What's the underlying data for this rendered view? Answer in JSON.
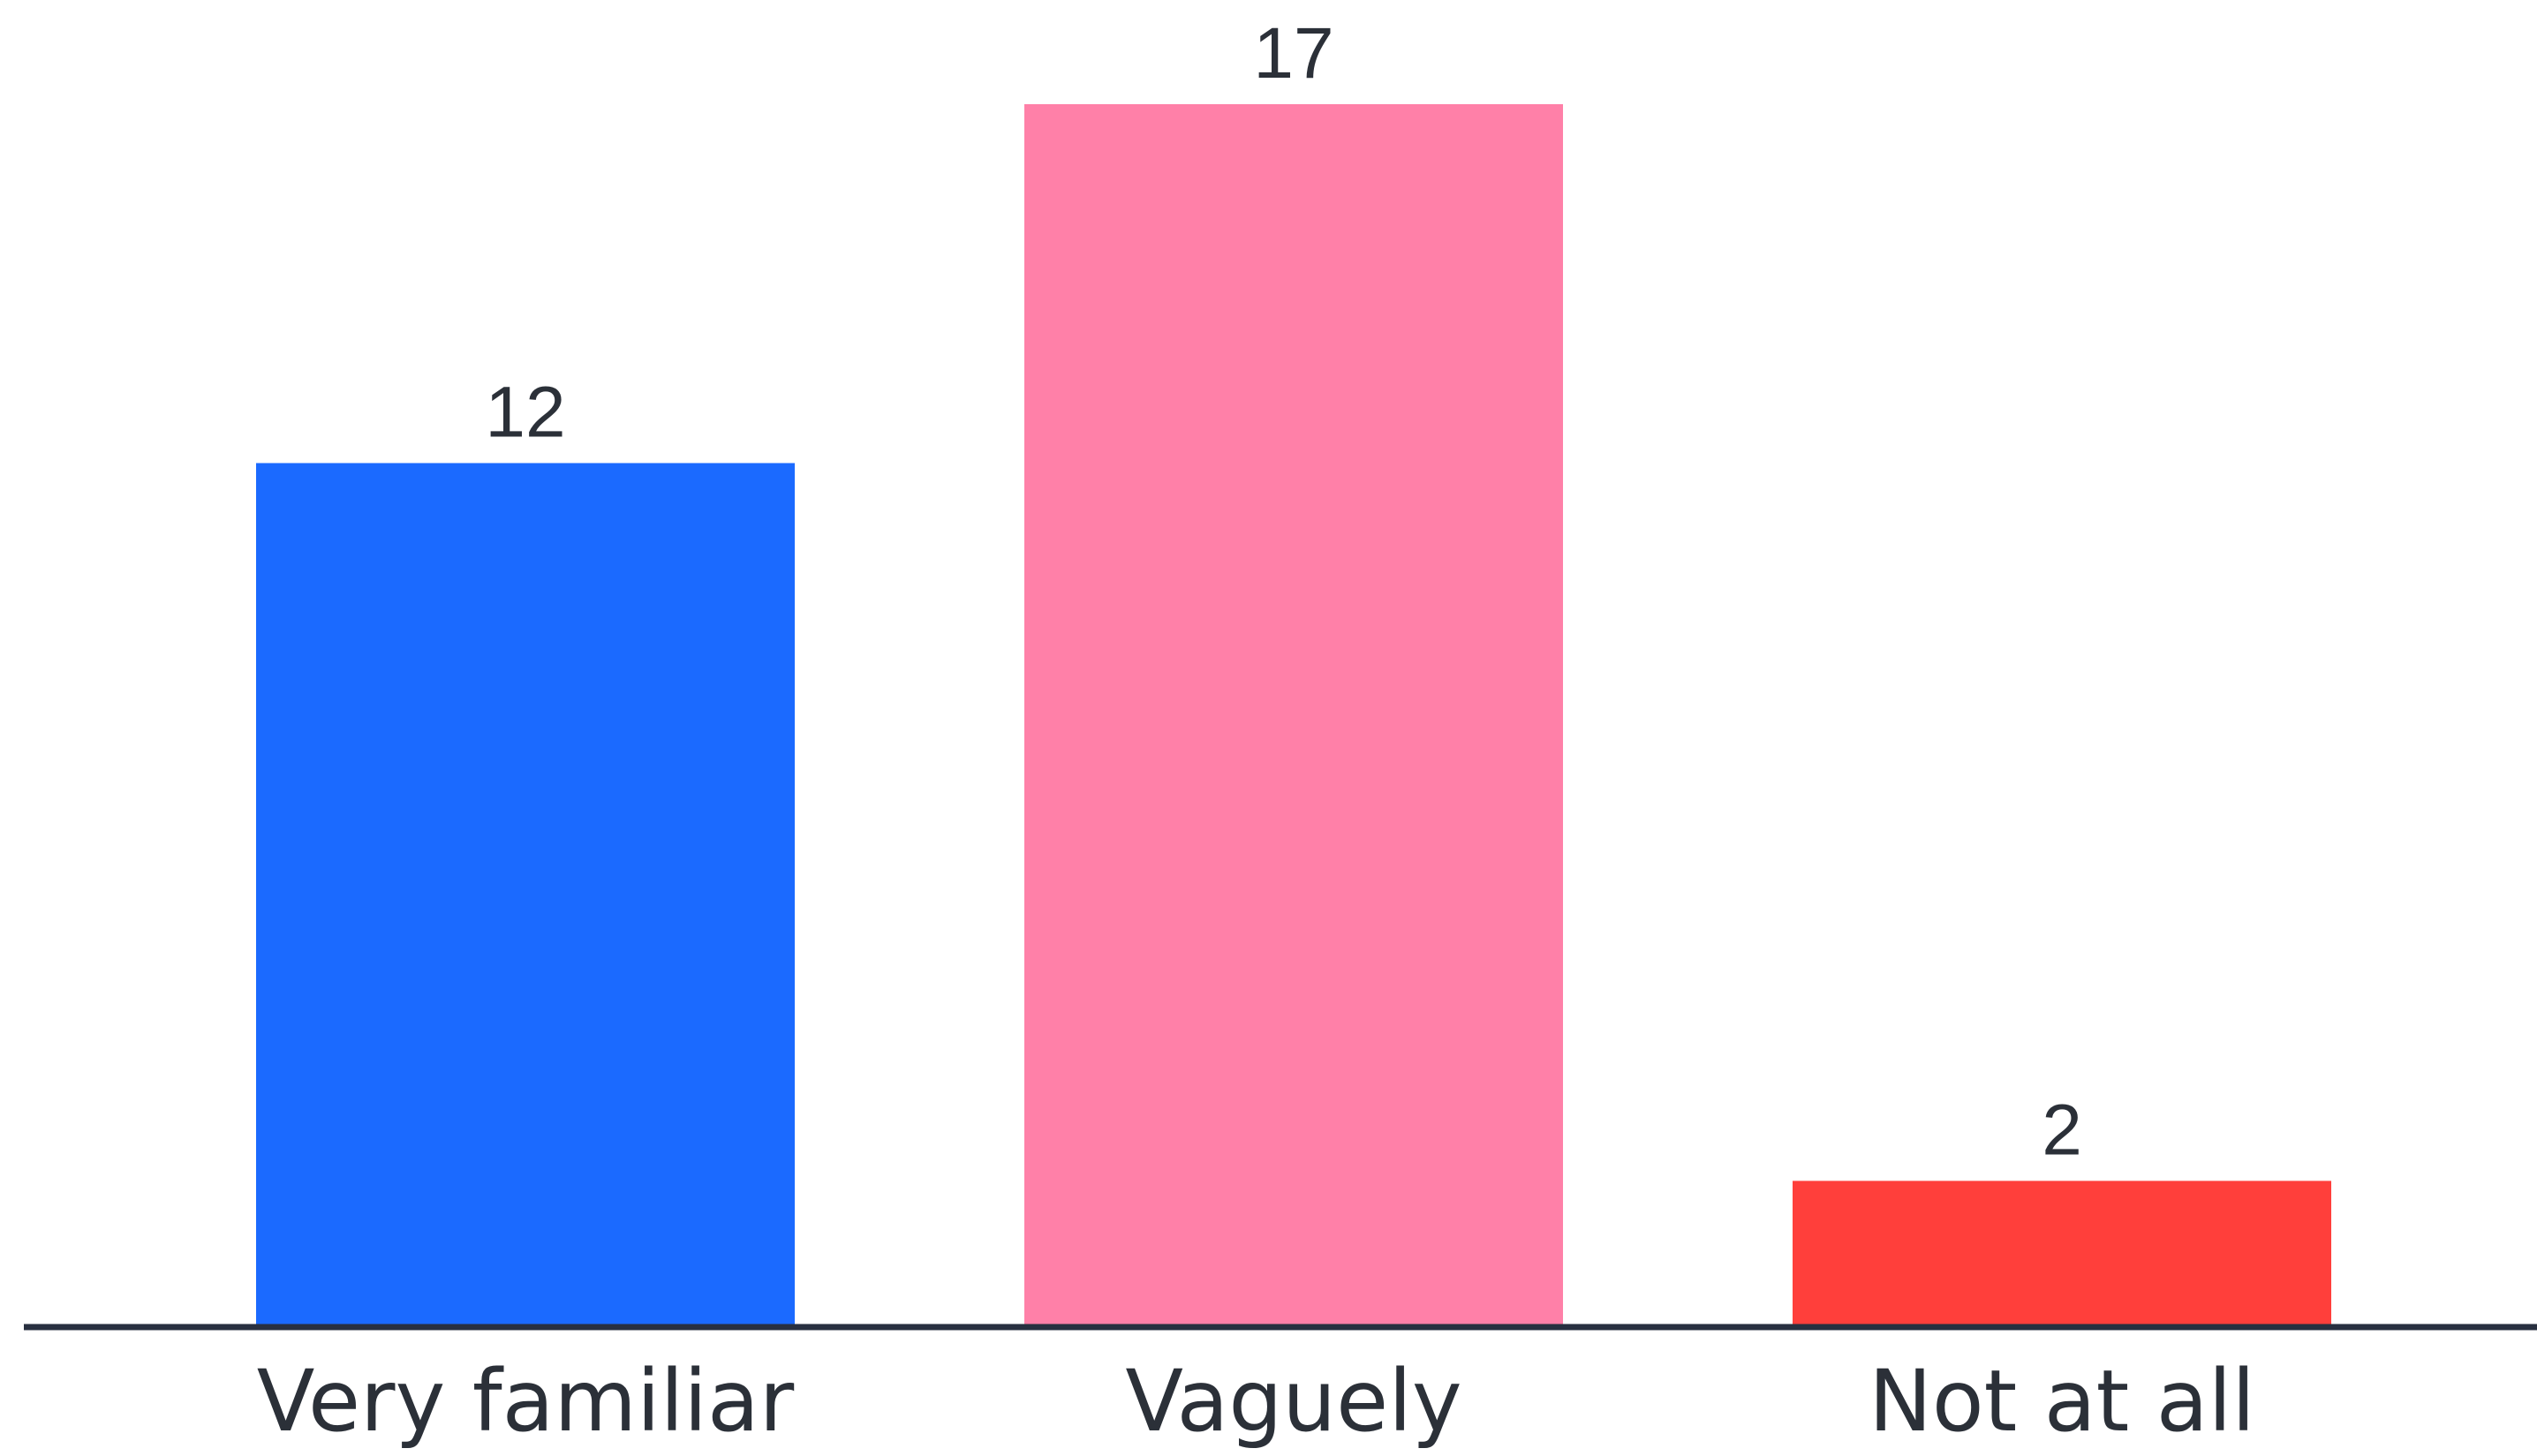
{
  "chart_data": {
    "type": "bar",
    "categories": [
      "Very familiar",
      "Vaguely",
      "Not at all"
    ],
    "values": [
      12,
      17,
      2
    ],
    "colors": [
      "#1b6aff",
      "#ff80a8",
      "#ff3f3b"
    ],
    "axis_color": "#283040",
    "text_color": "#2b3038",
    "title": "",
    "xlabel": "",
    "ylabel": "",
    "ylim": [
      0,
      17
    ],
    "grid": false,
    "data_labels": true
  }
}
